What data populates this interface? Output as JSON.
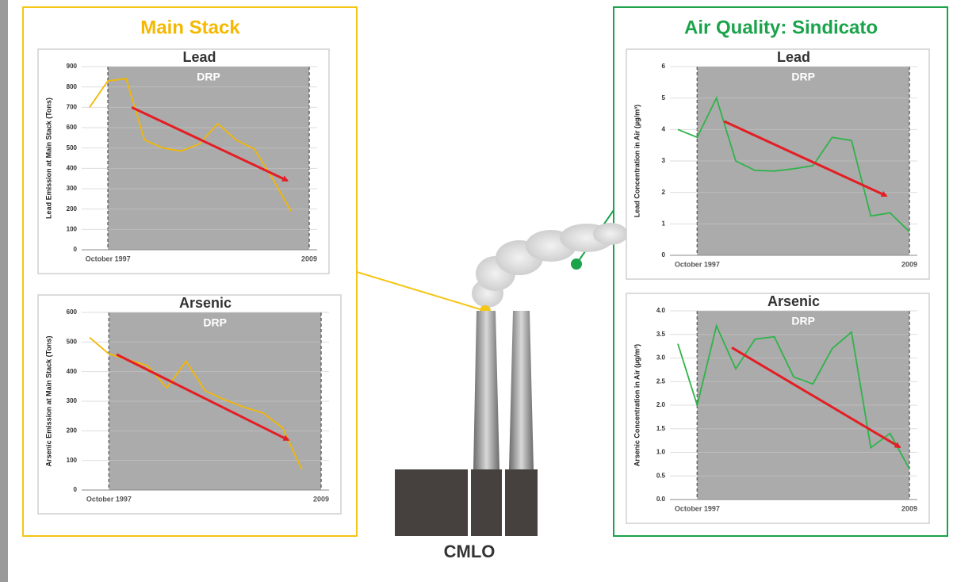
{
  "left_panel_title": "Main Stack",
  "right_panel_title": "Air Quality: Sindicato",
  "source_label": "CMLO",
  "chart_data": [
    {
      "type": "line",
      "title": "Lead",
      "y_label": "Lead Emission at Main Stack (Tons)",
      "color": "#f2b705",
      "categories": [
        null,
        "October 1997",
        null,
        null,
        null,
        null,
        null,
        null,
        null,
        null,
        null,
        null,
        "2009"
      ],
      "values": [
        700,
        830,
        840,
        540,
        500,
        485,
        520,
        620,
        540,
        495,
        350,
        190,
        null
      ],
      "ylim": [
        0,
        900
      ],
      "yticks": [
        0,
        100,
        200,
        300,
        400,
        500,
        600,
        700,
        800,
        900
      ],
      "grid": true,
      "shade_label": "DRP",
      "trend": [
        {
          "x": 2.3,
          "y": 700
        },
        {
          "x": 10.8,
          "y": 340
        }
      ]
    },
    {
      "type": "line",
      "title": "Arsenic",
      "y_label": "Arsenic Emission at Main Stack (Tons)",
      "color": "#f2b705",
      "categories": [
        null,
        "October 1997",
        null,
        null,
        null,
        null,
        null,
        null,
        null,
        null,
        null,
        null,
        "2009"
      ],
      "values": [
        515,
        460,
        440,
        420,
        345,
        435,
        335,
        305,
        280,
        260,
        210,
        70,
        null
      ],
      "ylim": [
        0,
        600
      ],
      "yticks": [
        0,
        100,
        200,
        300,
        400,
        500,
        600
      ],
      "grid": true,
      "shade_label": "DRP",
      "trend": [
        {
          "x": 1.4,
          "y": 458
        },
        {
          "x": 10.3,
          "y": 169
        }
      ]
    },
    {
      "type": "line",
      "title": "Lead",
      "y_label": "Lead Concentration in Air (µg/m³)",
      "color": "#2fb34a",
      "categories": [
        null,
        "October 1997",
        null,
        null,
        null,
        null,
        null,
        null,
        null,
        null,
        null,
        null,
        "2009"
      ],
      "values": [
        4.0,
        3.75,
        5.0,
        3.0,
        2.7,
        2.68,
        2.75,
        2.85,
        3.75,
        3.65,
        1.25,
        1.35,
        0.75
      ],
      "ylim": [
        0,
        6
      ],
      "yticks": [
        0,
        1,
        2,
        3,
        4,
        5,
        6
      ],
      "grid": true,
      "shade_label": "DRP",
      "trend": [
        {
          "x": 2.4,
          "y": 4.26
        },
        {
          "x": 10.8,
          "y": 1.89
        }
      ]
    },
    {
      "type": "line",
      "title": "Arsenic",
      "y_label": "Arsenic Concentration in Air (µg/m³)",
      "color": "#2fb34a",
      "categories": [
        null,
        "October 1997",
        null,
        null,
        null,
        null,
        null,
        null,
        null,
        null,
        null,
        null,
        "2009"
      ],
      "values": [
        3.3,
        2.0,
        3.68,
        2.77,
        3.4,
        3.45,
        2.6,
        2.45,
        3.2,
        3.55,
        1.1,
        1.4,
        0.65
      ],
      "ylim": [
        0,
        4
      ],
      "yticks": [
        {
          "value": 0,
          "label": "0.0"
        },
        0.5,
        {
          "value": 1,
          "label": "1.0"
        },
        1.5,
        {
          "value": 2,
          "label": "2.0"
        },
        2.5,
        {
          "value": 3,
          "label": "3.0"
        },
        3.5,
        {
          "value": 4,
          "label": "4.0"
        }
      ],
      "grid": true,
      "shade_label": "DRP",
      "trend": [
        {
          "x": 2.8,
          "y": 3.22
        },
        {
          "x": 11.5,
          "y": 1.11
        }
      ]
    }
  ]
}
